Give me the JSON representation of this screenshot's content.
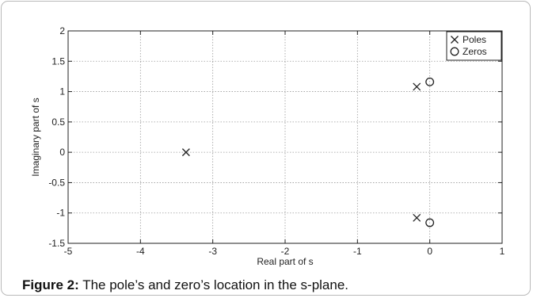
{
  "chart_data": {
    "type": "scatter",
    "xlabel": "Real part of s",
    "ylabel": "Imaginary part of s",
    "xlim": [
      -5,
      1
    ],
    "ylim": [
      -1.5,
      2
    ],
    "xticks": [
      "-5",
      "-4",
      "-3",
      "-2",
      "-1",
      "0",
      "1"
    ],
    "yticks": [
      "-1.5",
      "-1",
      "-0.5",
      "0",
      "0.5",
      "1",
      "1.5",
      "2"
    ],
    "grid": true,
    "legend_position": "top-right",
    "series": [
      {
        "name": "Poles",
        "marker": "x",
        "points": [
          [
            -3.37,
            0.0
          ],
          [
            -0.18,
            1.08
          ],
          [
            -0.18,
            -1.08
          ]
        ]
      },
      {
        "name": "Zeros",
        "marker": "o",
        "points": [
          [
            0.0,
            1.16
          ],
          [
            0.0,
            -1.16
          ]
        ]
      }
    ]
  },
  "caption": {
    "label": "Figure 2:",
    "text": " The pole’s and zero’s location in the s-plane."
  }
}
